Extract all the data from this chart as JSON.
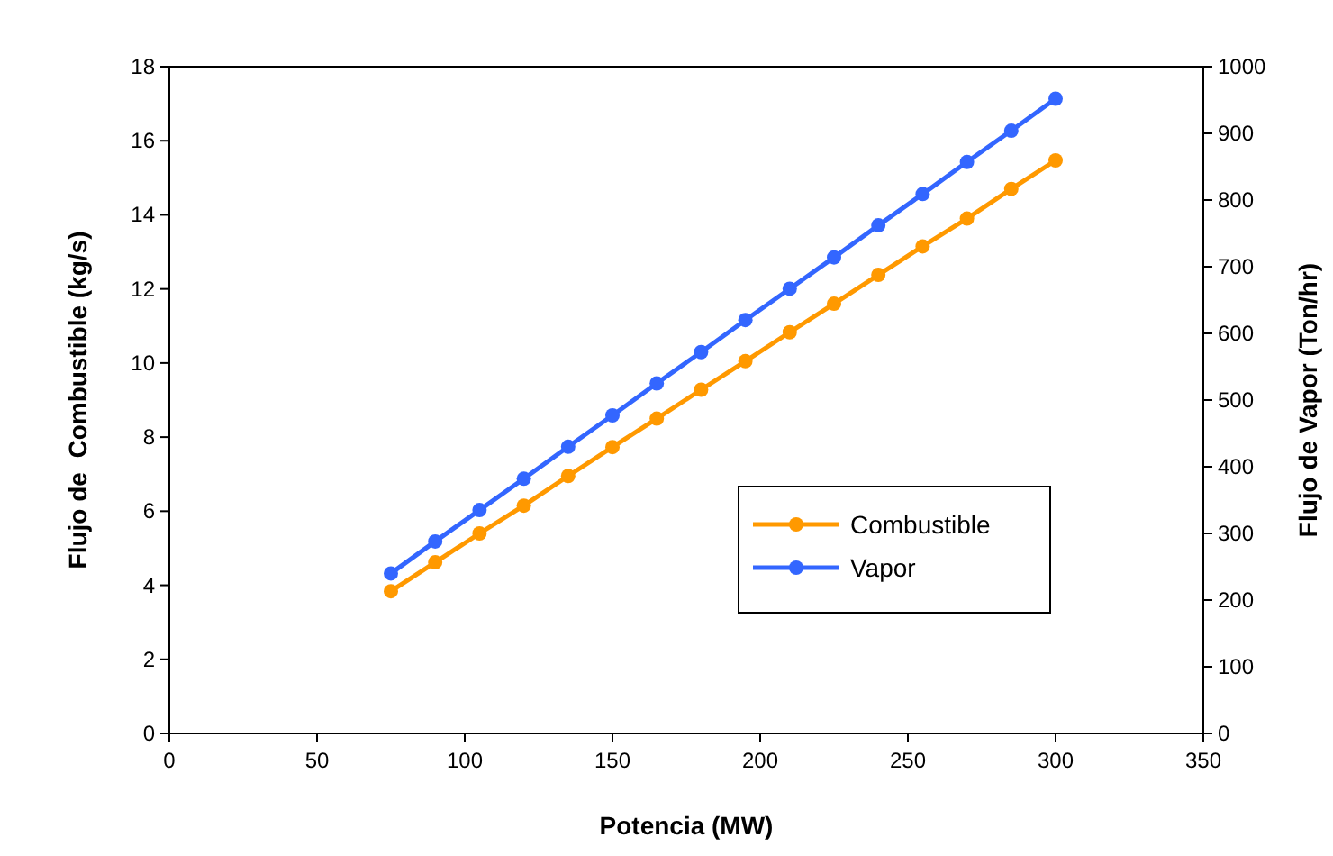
{
  "chart_data": {
    "type": "line",
    "xlabel": "Potencia (MW)",
    "ylabel": "Flujo de  Combustible (kg/s)",
    "y2label": "Flujo de Vapor (Ton/hr)",
    "x": [
      75,
      90,
      105,
      120,
      135,
      150,
      165,
      180,
      195,
      210,
      225,
      240,
      255,
      270,
      285,
      300
    ],
    "xlim": [
      0,
      350
    ],
    "xticks": [
      0,
      50,
      100,
      150,
      200,
      250,
      300,
      350
    ],
    "ylim": [
      0,
      18
    ],
    "yticks": [
      0,
      2,
      4,
      6,
      8,
      10,
      12,
      14,
      16,
      18
    ],
    "y2lim": [
      0,
      1000
    ],
    "y2ticks": [
      0,
      100,
      200,
      300,
      400,
      500,
      600,
      700,
      800,
      900,
      1000
    ],
    "series": [
      {
        "name": "Combustible",
        "color": "#ff9900",
        "values": [
          3.84,
          4.62,
          5.4,
          6.15,
          6.95,
          7.73,
          8.5,
          9.28,
          10.05,
          10.83,
          11.6,
          12.38,
          13.15,
          13.9,
          14.7,
          15.47
        ]
      },
      {
        "name": "Vapor",
        "color": "#3366ff",
        "axis": "y2",
        "values": [
          240,
          288,
          335,
          382,
          430,
          477,
          525,
          572,
          620,
          667,
          714,
          762,
          809,
          857,
          904,
          952
        ]
      }
    ],
    "marker": "circle",
    "line_style": "solid",
    "grid": false,
    "legend": "right"
  }
}
